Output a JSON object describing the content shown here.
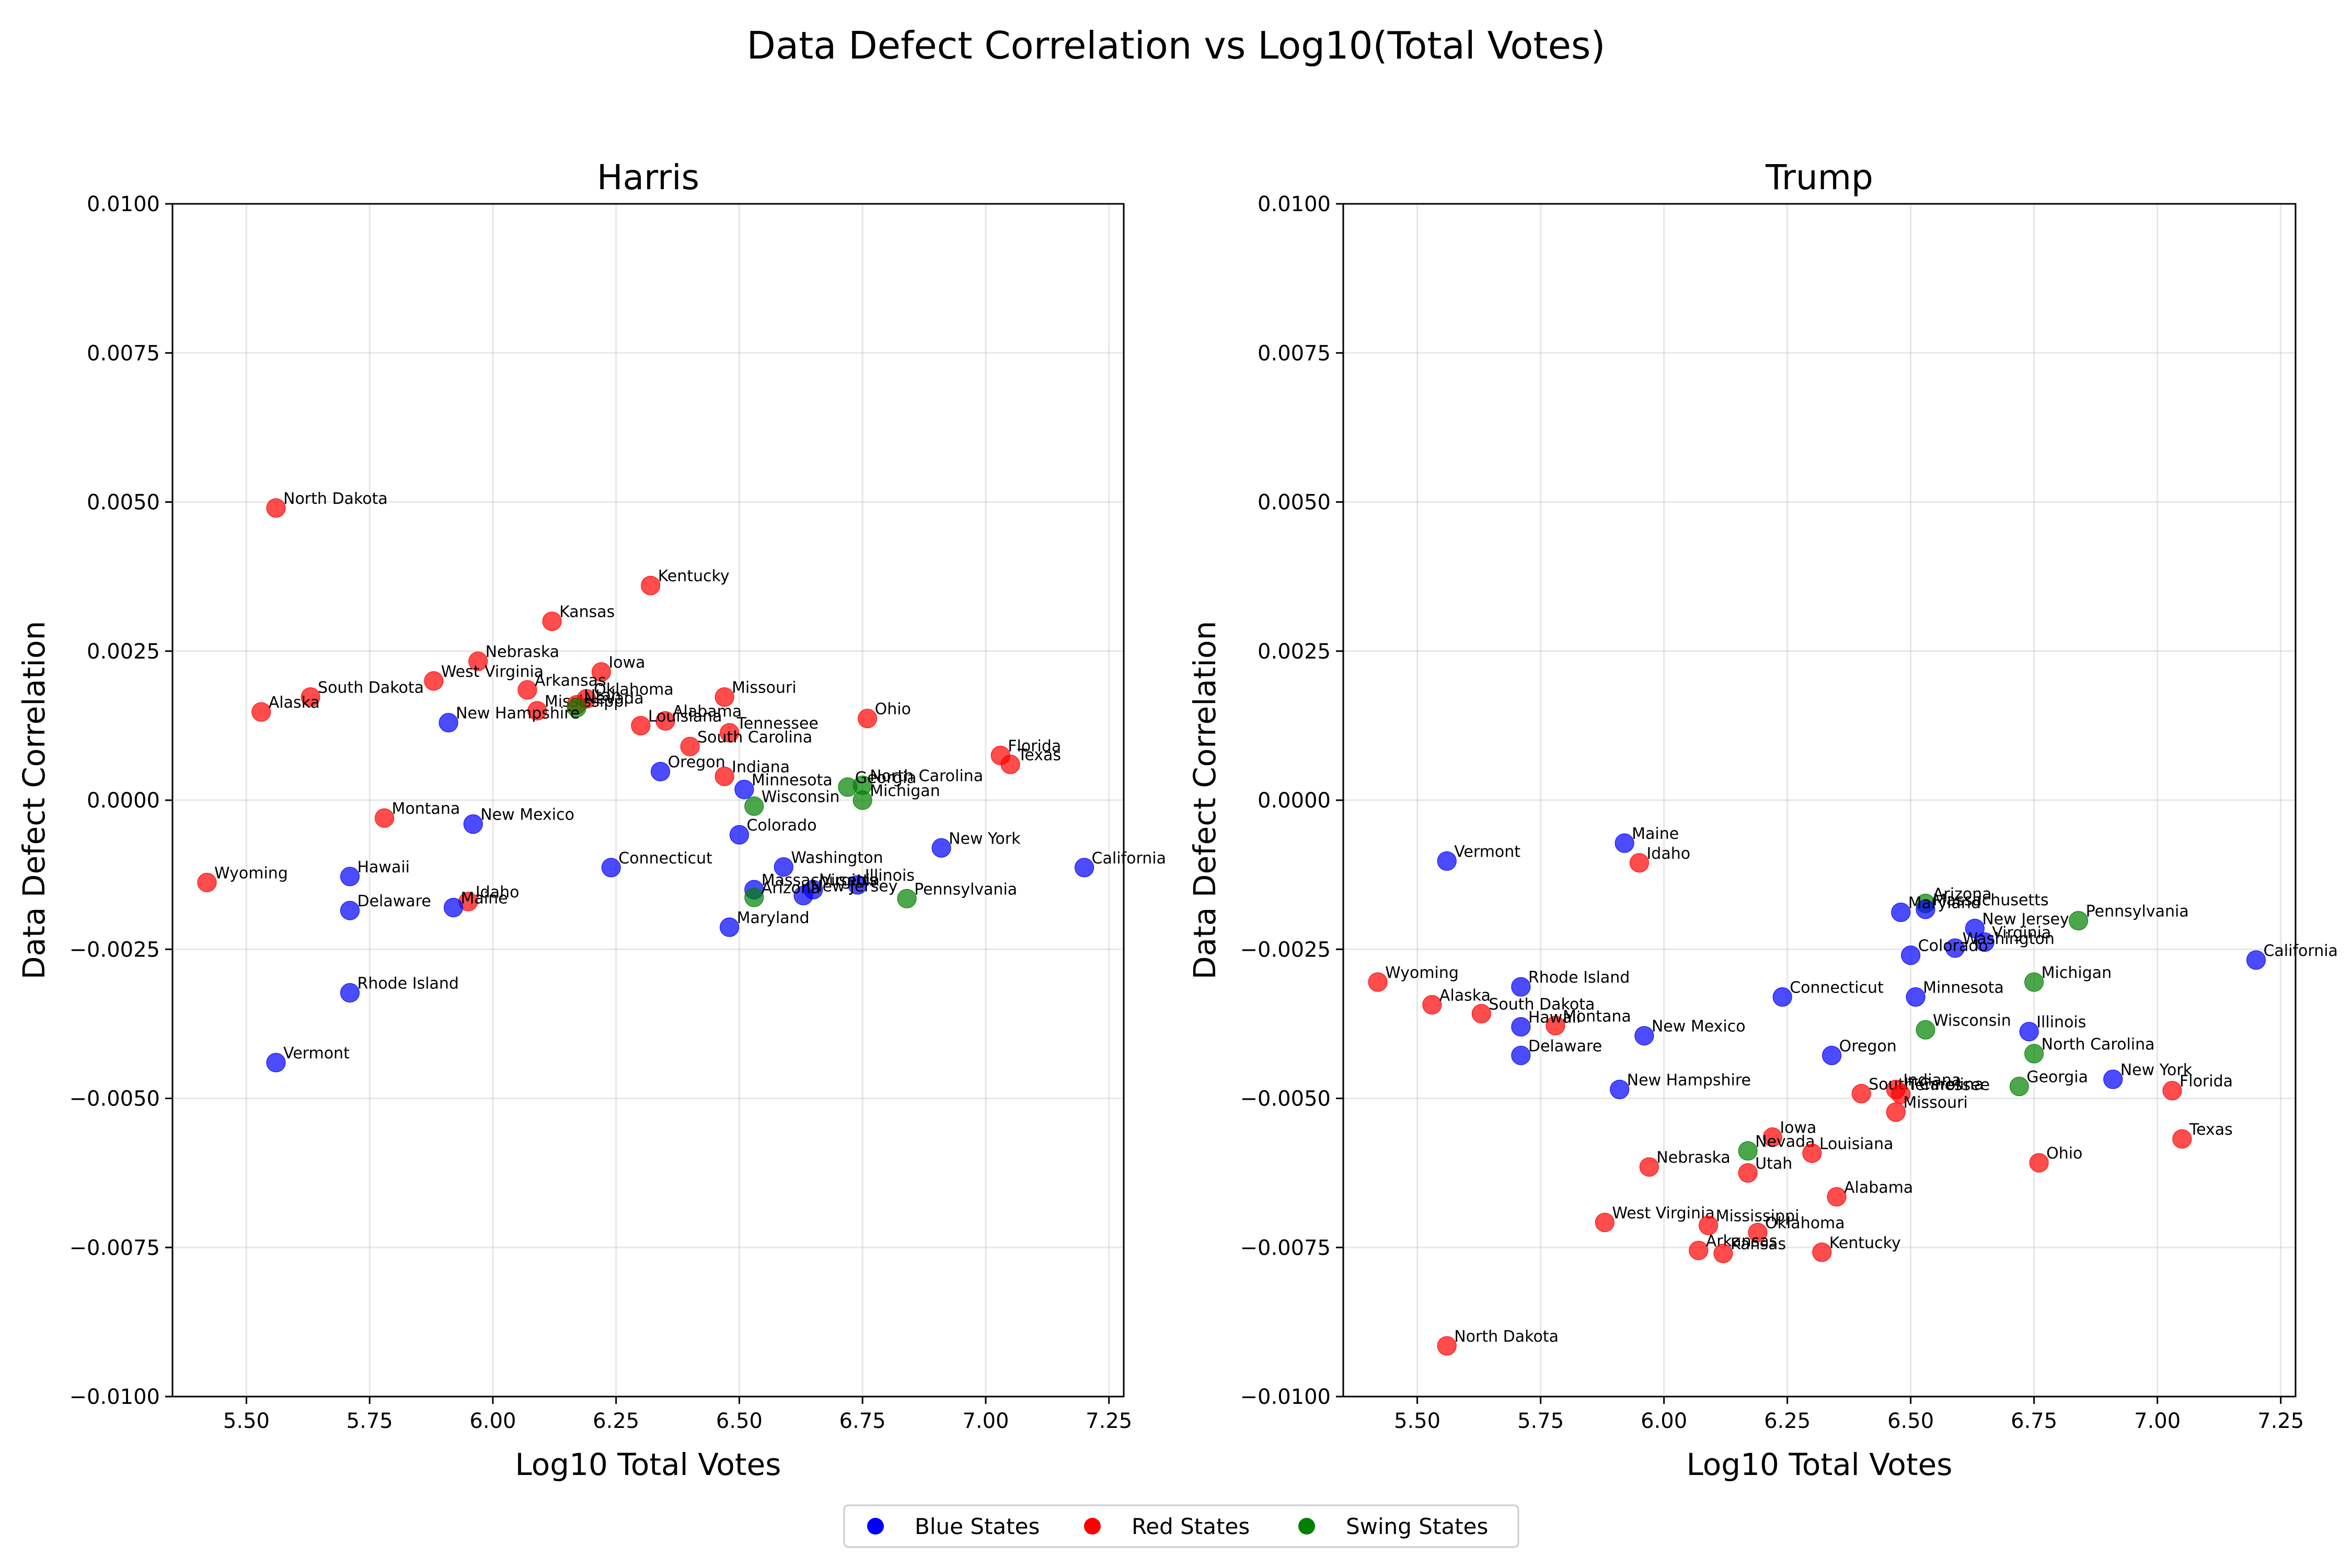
{
  "figure": {
    "suptitle": "Data Defect Correlation vs Log10(Total Votes)",
    "colors": {
      "Blue States": "#0000ff",
      "Red States": "#ff0000",
      "Swing States": "#008000"
    },
    "legend": {
      "entries": [
        "Blue States",
        "Red States",
        "Swing States"
      ],
      "placement": "bottom-center"
    }
  },
  "chart_data": [
    {
      "type": "scatter",
      "title": "Harris",
      "xlabel": "Log10 Total Votes",
      "ylabel": "Data Defect Correlation",
      "xlim": [
        5.35,
        7.28
      ],
      "ylim": [
        -0.01,
        0.01
      ],
      "xticks": [
        "5.50",
        "5.75",
        "6.00",
        "6.25",
        "6.50",
        "6.75",
        "7.00",
        "7.25"
      ],
      "yticks": [
        "−0.0100",
        "−0.0075",
        "−0.0050",
        "−0.0025",
        "0.0000",
        "0.0025",
        "0.0050",
        "0.0075",
        "0.0100"
      ],
      "grid": true,
      "points": [
        {
          "label": "North Dakota",
          "group": "Red States",
          "x": 5.56,
          "y": 0.0049
        },
        {
          "label": "Kentucky",
          "group": "Red States",
          "x": 6.32,
          "y": 0.0036
        },
        {
          "label": "Kansas",
          "group": "Red States",
          "x": 6.12,
          "y": 0.003
        },
        {
          "label": "Nebraska",
          "group": "Red States",
          "x": 5.97,
          "y": 0.00233
        },
        {
          "label": "Iowa",
          "group": "Red States",
          "x": 6.22,
          "y": 0.00215
        },
        {
          "label": "West Virginia",
          "group": "Red States",
          "x": 5.88,
          "y": 0.002
        },
        {
          "label": "Arkansas",
          "group": "Red States",
          "x": 6.07,
          "y": 0.00185
        },
        {
          "label": "South Dakota",
          "group": "Red States",
          "x": 5.63,
          "y": 0.00173
        },
        {
          "label": "Missouri",
          "group": "Red States",
          "x": 6.47,
          "y": 0.00173
        },
        {
          "label": "Oklahoma",
          "group": "Red States",
          "x": 6.19,
          "y": 0.0017
        },
        {
          "label": "Mississippi",
          "group": "Red States",
          "x": 6.09,
          "y": 0.0015
        },
        {
          "label": "Utah",
          "group": "Red States",
          "x": 6.17,
          "y": 0.0016
        },
        {
          "label": "Nevada",
          "group": "Swing States",
          "x": 6.17,
          "y": 0.00155
        },
        {
          "label": "Alaska",
          "group": "Red States",
          "x": 5.53,
          "y": 0.00148
        },
        {
          "label": "Alabama",
          "group": "Red States",
          "x": 6.35,
          "y": 0.00133
        },
        {
          "label": "Ohio",
          "group": "Red States",
          "x": 6.76,
          "y": 0.00137
        },
        {
          "label": "New Hampshire",
          "group": "Blue States",
          "x": 5.91,
          "y": 0.0013
        },
        {
          "label": "Louisiana",
          "group": "Red States",
          "x": 6.3,
          "y": 0.00125
        },
        {
          "label": "Tennessee",
          "group": "Red States",
          "x": 6.48,
          "y": 0.00113
        },
        {
          "label": "South Carolina",
          "group": "Red States",
          "x": 6.4,
          "y": 0.0009
        },
        {
          "label": "Florida",
          "group": "Red States",
          "x": 7.03,
          "y": 0.00075
        },
        {
          "label": "Texas",
          "group": "Red States",
          "x": 7.05,
          "y": 0.0006
        },
        {
          "label": "Oregon",
          "group": "Blue States",
          "x": 6.34,
          "y": 0.00048
        },
        {
          "label": "Indiana",
          "group": "Red States",
          "x": 6.47,
          "y": 0.0004
        },
        {
          "label": "North Carolina",
          "group": "Swing States",
          "x": 6.75,
          "y": 0.00025
        },
        {
          "label": "Georgia",
          "group": "Swing States",
          "x": 6.72,
          "y": 0.00022
        },
        {
          "label": "Minnesota",
          "group": "Blue States",
          "x": 6.51,
          "y": 0.00018
        },
        {
          "label": "Michigan",
          "group": "Swing States",
          "x": 6.75,
          "y": 0.0
        },
        {
          "label": "Wisconsin",
          "group": "Swing States",
          "x": 6.53,
          "y": -0.0001
        },
        {
          "label": "Montana",
          "group": "Red States",
          "x": 5.78,
          "y": -0.0003
        },
        {
          "label": "New Mexico",
          "group": "Blue States",
          "x": 5.96,
          "y": -0.0004
        },
        {
          "label": "Colorado",
          "group": "Blue States",
          "x": 6.5,
          "y": -0.00058
        },
        {
          "label": "New York",
          "group": "Blue States",
          "x": 6.91,
          "y": -0.0008
        },
        {
          "label": "Washington",
          "group": "Blue States",
          "x": 6.59,
          "y": -0.00112
        },
        {
          "label": "Connecticut",
          "group": "Blue States",
          "x": 6.24,
          "y": -0.00113
        },
        {
          "label": "California",
          "group": "Blue States",
          "x": 7.2,
          "y": -0.00113
        },
        {
          "label": "Hawaii",
          "group": "Blue States",
          "x": 5.71,
          "y": -0.00128
        },
        {
          "label": "Wyoming",
          "group": "Red States",
          "x": 5.42,
          "y": -0.00138
        },
        {
          "label": "Illinois",
          "group": "Blue States",
          "x": 6.74,
          "y": -0.00142
        },
        {
          "label": "Virginia",
          "group": "Blue States",
          "x": 6.65,
          "y": -0.0015
        },
        {
          "label": "Massachusetts",
          "group": "Blue States",
          "x": 6.53,
          "y": -0.0015
        },
        {
          "label": "New Jersey",
          "group": "Blue States",
          "x": 6.63,
          "y": -0.0016
        },
        {
          "label": "Arizona",
          "group": "Swing States",
          "x": 6.53,
          "y": -0.00163
        },
        {
          "label": "Pennsylvania",
          "group": "Swing States",
          "x": 6.84,
          "y": -0.00165
        },
        {
          "label": "Idaho",
          "group": "Red States",
          "x": 5.95,
          "y": -0.0017
        },
        {
          "label": "Maine",
          "group": "Blue States",
          "x": 5.92,
          "y": -0.0018
        },
        {
          "label": "Delaware",
          "group": "Blue States",
          "x": 5.71,
          "y": -0.00185
        },
        {
          "label": "Maryland",
          "group": "Blue States",
          "x": 6.48,
          "y": -0.00213
        },
        {
          "label": "Rhode Island",
          "group": "Blue States",
          "x": 5.71,
          "y": -0.00323
        },
        {
          "label": "Vermont",
          "group": "Blue States",
          "x": 5.56,
          "y": -0.0044
        }
      ]
    },
    {
      "type": "scatter",
      "title": "Trump",
      "xlabel": "Log10 Total Votes",
      "ylabel": "Data Defect Correlation",
      "xlim": [
        5.35,
        7.28
      ],
      "ylim": [
        -0.01,
        0.01
      ],
      "xticks": [
        "5.50",
        "5.75",
        "6.00",
        "6.25",
        "6.50",
        "6.75",
        "7.00",
        "7.25"
      ],
      "yticks": [
        "−0.0100",
        "−0.0075",
        "−0.0050",
        "−0.0025",
        "0.0000",
        "0.0025",
        "0.0050",
        "0.0075",
        "0.0100"
      ],
      "grid": true,
      "points": [
        {
          "label": "Maine",
          "group": "Blue States",
          "x": 5.92,
          "y": -0.00072
        },
        {
          "label": "Vermont",
          "group": "Blue States",
          "x": 5.56,
          "y": -0.00102
        },
        {
          "label": "Idaho",
          "group": "Red States",
          "x": 5.95,
          "y": -0.00105
        },
        {
          "label": "Arizona",
          "group": "Swing States",
          "x": 6.53,
          "y": -0.00173
        },
        {
          "label": "Massachusetts",
          "group": "Blue States",
          "x": 6.53,
          "y": -0.00183
        },
        {
          "label": "Maryland",
          "group": "Blue States",
          "x": 6.48,
          "y": -0.00188
        },
        {
          "label": "Pennsylvania",
          "group": "Swing States",
          "x": 6.84,
          "y": -0.00202
        },
        {
          "label": "New Jersey",
          "group": "Blue States",
          "x": 6.63,
          "y": -0.00215
        },
        {
          "label": "Virginia",
          "group": "Blue States",
          "x": 6.65,
          "y": -0.00238
        },
        {
          "label": "Washington",
          "group": "Blue States",
          "x": 6.59,
          "y": -0.00248
        },
        {
          "label": "Colorado",
          "group": "Blue States",
          "x": 6.5,
          "y": -0.0026
        },
        {
          "label": "California",
          "group": "Blue States",
          "x": 7.2,
          "y": -0.00268
        },
        {
          "label": "Wyoming",
          "group": "Red States",
          "x": 5.42,
          "y": -0.00305
        },
        {
          "label": "Michigan",
          "group": "Swing States",
          "x": 6.75,
          "y": -0.00305
        },
        {
          "label": "Rhode Island",
          "group": "Blue States",
          "x": 5.71,
          "y": -0.00313
        },
        {
          "label": "Minnesota",
          "group": "Blue States",
          "x": 6.51,
          "y": -0.0033
        },
        {
          "label": "Connecticut",
          "group": "Blue States",
          "x": 6.24,
          "y": -0.0033
        },
        {
          "label": "Alaska",
          "group": "Red States",
          "x": 5.53,
          "y": -0.00343
        },
        {
          "label": "South Dakota",
          "group": "Red States",
          "x": 5.63,
          "y": -0.00358
        },
        {
          "label": "Montana",
          "group": "Red States",
          "x": 5.78,
          "y": -0.00378
        },
        {
          "label": "Hawaii",
          "group": "Blue States",
          "x": 5.71,
          "y": -0.0038
        },
        {
          "label": "Wisconsin",
          "group": "Swing States",
          "x": 6.53,
          "y": -0.00385
        },
        {
          "label": "Illinois",
          "group": "Blue States",
          "x": 6.74,
          "y": -0.00388
        },
        {
          "label": "New Mexico",
          "group": "Blue States",
          "x": 5.96,
          "y": -0.00395
        },
        {
          "label": "North Carolina",
          "group": "Swing States",
          "x": 6.75,
          "y": -0.00425
        },
        {
          "label": "Oregon",
          "group": "Blue States",
          "x": 6.34,
          "y": -0.00428
        },
        {
          "label": "Delaware",
          "group": "Blue States",
          "x": 5.71,
          "y": -0.00428
        },
        {
          "label": "New York",
          "group": "Blue States",
          "x": 6.91,
          "y": -0.00468
        },
        {
          "label": "Georgia",
          "group": "Swing States",
          "x": 6.72,
          "y": -0.0048
        },
        {
          "label": "Indiana",
          "group": "Red States",
          "x": 6.47,
          "y": -0.00485
        },
        {
          "label": "New Hampshire",
          "group": "Blue States",
          "x": 5.91,
          "y": -0.00485
        },
        {
          "label": "Florida",
          "group": "Red States",
          "x": 7.03,
          "y": -0.00487
        },
        {
          "label": "South Carolina",
          "group": "Red States",
          "x": 6.4,
          "y": -0.00492
        },
        {
          "label": "Tennessee",
          "group": "Red States",
          "x": 6.48,
          "y": -0.00493
        },
        {
          "label": "Missouri",
          "group": "Red States",
          "x": 6.47,
          "y": -0.00523
        },
        {
          "label": "Iowa",
          "group": "Red States",
          "x": 6.22,
          "y": -0.00565
        },
        {
          "label": "Texas",
          "group": "Red States",
          "x": 7.05,
          "y": -0.00568
        },
        {
          "label": "Nevada",
          "group": "Swing States",
          "x": 6.17,
          "y": -0.00588
        },
        {
          "label": "Louisiana",
          "group": "Red States",
          "x": 6.3,
          "y": -0.00592
        },
        {
          "label": "Ohio",
          "group": "Red States",
          "x": 6.76,
          "y": -0.00608
        },
        {
          "label": "Nebraska",
          "group": "Red States",
          "x": 5.97,
          "y": -0.00615
        },
        {
          "label": "Utah",
          "group": "Red States",
          "x": 6.17,
          "y": -0.00625
        },
        {
          "label": "Alabama",
          "group": "Red States",
          "x": 6.35,
          "y": -0.00665
        },
        {
          "label": "West Virginia",
          "group": "Red States",
          "x": 5.88,
          "y": -0.00708
        },
        {
          "label": "Mississippi",
          "group": "Red States",
          "x": 6.09,
          "y": -0.00713
        },
        {
          "label": "Oklahoma",
          "group": "Red States",
          "x": 6.19,
          "y": -0.00725
        },
        {
          "label": "Arkansas",
          "group": "Red States",
          "x": 6.07,
          "y": -0.00755
        },
        {
          "label": "Kansas",
          "group": "Red States",
          "x": 6.12,
          "y": -0.0076
        },
        {
          "label": "Kentucky",
          "group": "Red States",
          "x": 6.32,
          "y": -0.00758
        },
        {
          "label": "North Dakota",
          "group": "Red States",
          "x": 5.56,
          "y": -0.00915
        }
      ]
    }
  ]
}
